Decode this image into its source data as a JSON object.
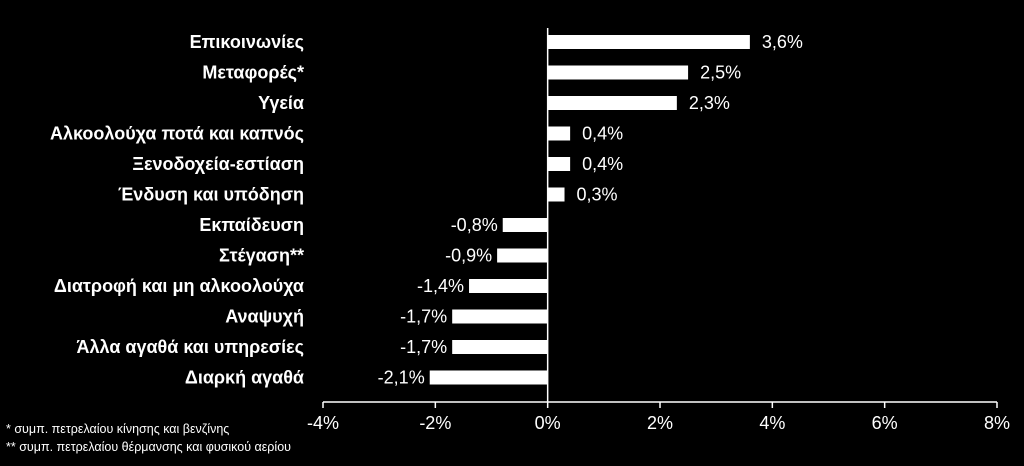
{
  "chart_data": {
    "type": "bar",
    "orientation": "horizontal",
    "categories": [
      "Επικοινωνίες",
      "Μεταφορές*",
      "Υγεία",
      "Αλκοολούχα ποτά και καπνός",
      "Ξενοδοχεία-εστίαση",
      "Ένδυση και υπόδηση",
      "Εκπαίδευση",
      "Στέγαση**",
      "Διατροφή και μη αλκοολούχα",
      "Αναψυχή",
      "Άλλα αγαθά και υπηρεσίες",
      "Διαρκή αγαθά"
    ],
    "values": [
      3.6,
      2.5,
      2.3,
      0.4,
      0.4,
      0.3,
      -0.8,
      -0.9,
      -1.4,
      -1.7,
      -1.7,
      -2.1
    ],
    "value_labels": [
      "3,6%",
      "2,5%",
      "2,3%",
      "0,4%",
      "0,4%",
      "0,3%",
      "-0,8%",
      "-0,9%",
      "-1,4%",
      "-1,7%",
      "-1,7%",
      "-2,1%"
    ],
    "xlim": [
      -4,
      8
    ],
    "xticks": [
      -4,
      -2,
      0,
      2,
      4,
      6,
      8
    ],
    "xtick_labels": [
      "-4%",
      "-2%",
      "0%",
      "2%",
      "4%",
      "6%",
      "8%"
    ],
    "bar_color": "#ffffff",
    "background": "#000000",
    "title": "",
    "xlabel": "",
    "ylabel": ""
  },
  "footnotes": {
    "note1": "* συμπ. πετρελαίου κίνησης και βενζίνης",
    "note2": "** συμπ. πετρελαίου θέρμανσης και φυσικού αερίου"
  }
}
